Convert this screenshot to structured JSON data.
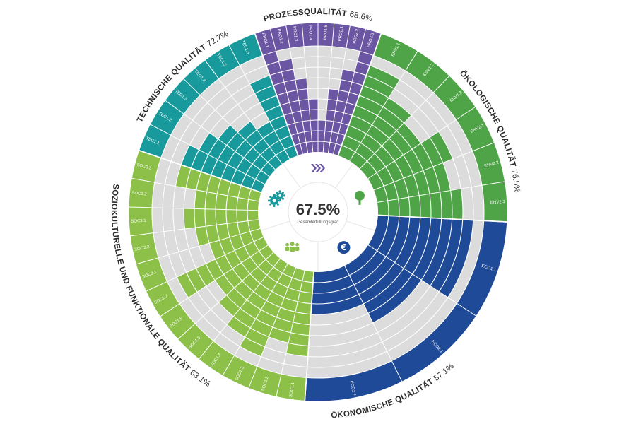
{
  "chart_data": {
    "type": "radial-bar",
    "total": {
      "value": "67.5%",
      "label": "Gesamterfüllungsgrad"
    },
    "max_score": 10,
    "categories": [
      {
        "name": "PROZESSQUALITÄT",
        "percent": "68.6%",
        "color": "#6a56a2",
        "icon": "arrows-icon",
        "criteria": [
          {
            "id": "PRO1.1",
            "value": 10
          },
          {
            "id": "PRO1.2",
            "value": 9
          },
          {
            "id": "PRO1.3",
            "value": 7
          },
          {
            "id": "PRO1.4",
            "value": 5
          },
          {
            "id": "PRO1.5",
            "value": 3
          },
          {
            "id": "PRO2.1",
            "value": 6
          },
          {
            "id": "PRO2.2",
            "value": 8
          },
          {
            "id": "PRO2.3",
            "value": 10
          }
        ]
      },
      {
        "name": "ÖKOLOGISCHE QUALITÄT",
        "percent": "76.5%",
        "color": "#4ea446",
        "icon": "tree-icon",
        "criteria": [
          {
            "id": "ENV1.1",
            "value": 9
          },
          {
            "id": "ENV1.2",
            "value": 7
          },
          {
            "id": "ENV1.3",
            "value": 6
          },
          {
            "id": "ENV2.1",
            "value": 8
          },
          {
            "id": "ENV2.2",
            "value": 7
          },
          {
            "id": "ENV2.3",
            "value": 8
          }
        ]
      },
      {
        "name": "ÖKONOMISCHE QUALITÄT",
        "percent": "57.1%",
        "color": "#1e4a97",
        "icon": "euro-icon",
        "criteria": [
          {
            "id": "ECO1.1",
            "value": 9
          },
          {
            "id": "ECO2.1",
            "value": 6
          },
          {
            "id": "ECO2.2",
            "value": 4
          }
        ]
      },
      {
        "name": "SOZIOKULTURELLE UND FUNKTIONALE QUALITÄT",
        "percent": "63.1%",
        "color": "#8cc048",
        "icon": "people-icon",
        "criteria": [
          {
            "id": "SOC1.1",
            "value": 8
          },
          {
            "id": "SOC1.2",
            "value": 7
          },
          {
            "id": "SOC1.3",
            "value": 9
          },
          {
            "id": "SOC1.4",
            "value": 8
          },
          {
            "id": "SOC1.5",
            "value": 7
          },
          {
            "id": "SOC1.6",
            "value": 6
          },
          {
            "id": "SOC1.7",
            "value": 9
          },
          {
            "id": "SOC2.1",
            "value": 5
          },
          {
            "id": "SOC2.2",
            "value": 6
          },
          {
            "id": "SOC3.1",
            "value": 7
          },
          {
            "id": "SOC3.2",
            "value": 6
          },
          {
            "id": "SOC3.3",
            "value": 8
          }
        ]
      },
      {
        "name": "TECHNISCHE QUALITÄT",
        "percent": "72.7%",
        "color": "#189a9c",
        "icon": "gears-icon",
        "criteria": [
          {
            "id": "TEC1.1",
            "value": 8
          },
          {
            "id": "TEC1.2",
            "value": 7
          },
          {
            "id": "TEC1.3",
            "value": 6
          },
          {
            "id": "TEC1.4",
            "value": 5
          },
          {
            "id": "TEC1.5",
            "value": 4
          },
          {
            "id": "TEC1.6",
            "value": 8
          }
        ]
      }
    ]
  }
}
